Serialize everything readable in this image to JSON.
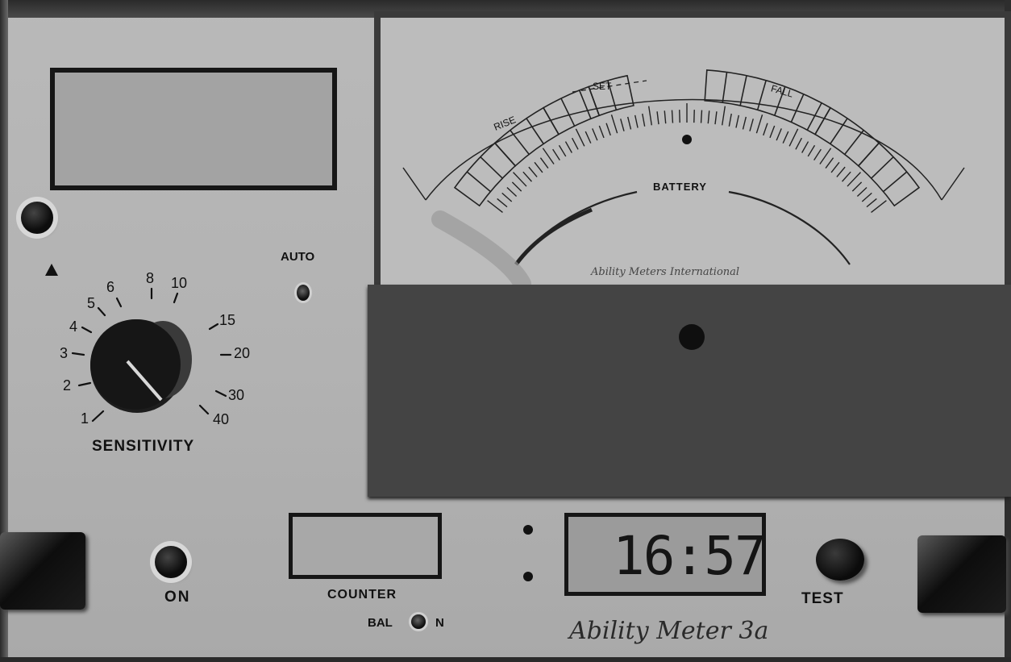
{
  "display": {
    "auto_label": "AUTO",
    "up_arrow_label": "▲"
  },
  "sensitivity": {
    "label": "SENSITIVITY",
    "scale": [
      "1",
      "2",
      "3",
      "4",
      "5",
      "6",
      "8",
      "10",
      "15",
      "20",
      "30",
      "40"
    ]
  },
  "meter": {
    "rise_label": "RISE",
    "set_label": "SET",
    "fall_label": "FALL",
    "battery_label": "BATTERY",
    "maker": "Ability Meters International"
  },
  "bottom": {
    "on_label": "ON",
    "counter_label": "COUNTER",
    "bal_label": "BAL",
    "n_label": "N",
    "clock": "16:57",
    "test_label": "TEST",
    "brand": "Ability Meter 3a"
  },
  "icons": {
    "up_arrow": "triangle-up-icon",
    "dial_pointer": "pointer-icon"
  }
}
